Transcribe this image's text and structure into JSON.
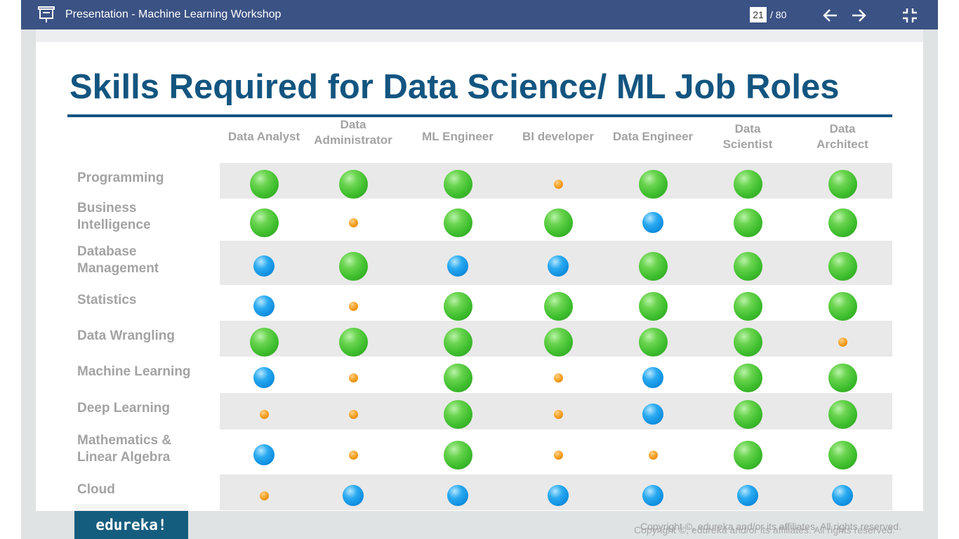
{
  "window": {
    "title": "Presentation - Machine Learning Workshop",
    "current_page": "21",
    "total_pages": "/ 80",
    "icons": {
      "presentation": "presentation-icon",
      "prev": "arrow-left-icon",
      "next": "arrow-right-icon",
      "exit_fullscreen": "exit-fullscreen-icon"
    }
  },
  "slide": {
    "title": "Skills Required for Data Science/ ML Job Roles",
    "columns": [
      "Data Analyst",
      "Data Administrator",
      "ML Engineer",
      "BI developer",
      "Data Engineer",
      "Data Scientist",
      "Data Architect"
    ],
    "rows": [
      {
        "label": "Programming",
        "levels": [
          "high",
          "high",
          "high",
          "low",
          "high",
          "high",
          "high"
        ]
      },
      {
        "label": "Business Intelligence",
        "levels": [
          "high",
          "low",
          "high",
          "high",
          "medium",
          "high",
          "high"
        ]
      },
      {
        "label": "Database Management",
        "levels": [
          "medium",
          "high",
          "medium",
          "medium",
          "high",
          "high",
          "high"
        ]
      },
      {
        "label": "Statistics",
        "levels": [
          "medium",
          "low",
          "high",
          "high",
          "high",
          "high",
          "high"
        ]
      },
      {
        "label": "Data Wrangling",
        "levels": [
          "high",
          "high",
          "high",
          "high",
          "high",
          "high",
          "low"
        ]
      },
      {
        "label": "Machine Learning",
        "levels": [
          "medium",
          "low",
          "high",
          "low",
          "medium",
          "high",
          "high"
        ]
      },
      {
        "label": "Deep Learning",
        "levels": [
          "low",
          "low",
          "high",
          "low",
          "medium",
          "high",
          "high"
        ]
      },
      {
        "label": "Mathematics & Linear Algebra",
        "levels": [
          "medium",
          "low",
          "high",
          "low",
          "low",
          "high",
          "high"
        ]
      },
      {
        "label": "Cloud",
        "levels": [
          "low",
          "medium",
          "medium",
          "medium",
          "medium",
          "medium",
          "medium"
        ]
      }
    ],
    "level_colors": {
      "high": "#3fbf2e",
      "medium": "#0f8fe0",
      "low": "#f5a020"
    },
    "logo": "edureka!",
    "copyright": "Copyright ©, edureka and/or its affiliates. All rights reserved."
  }
}
